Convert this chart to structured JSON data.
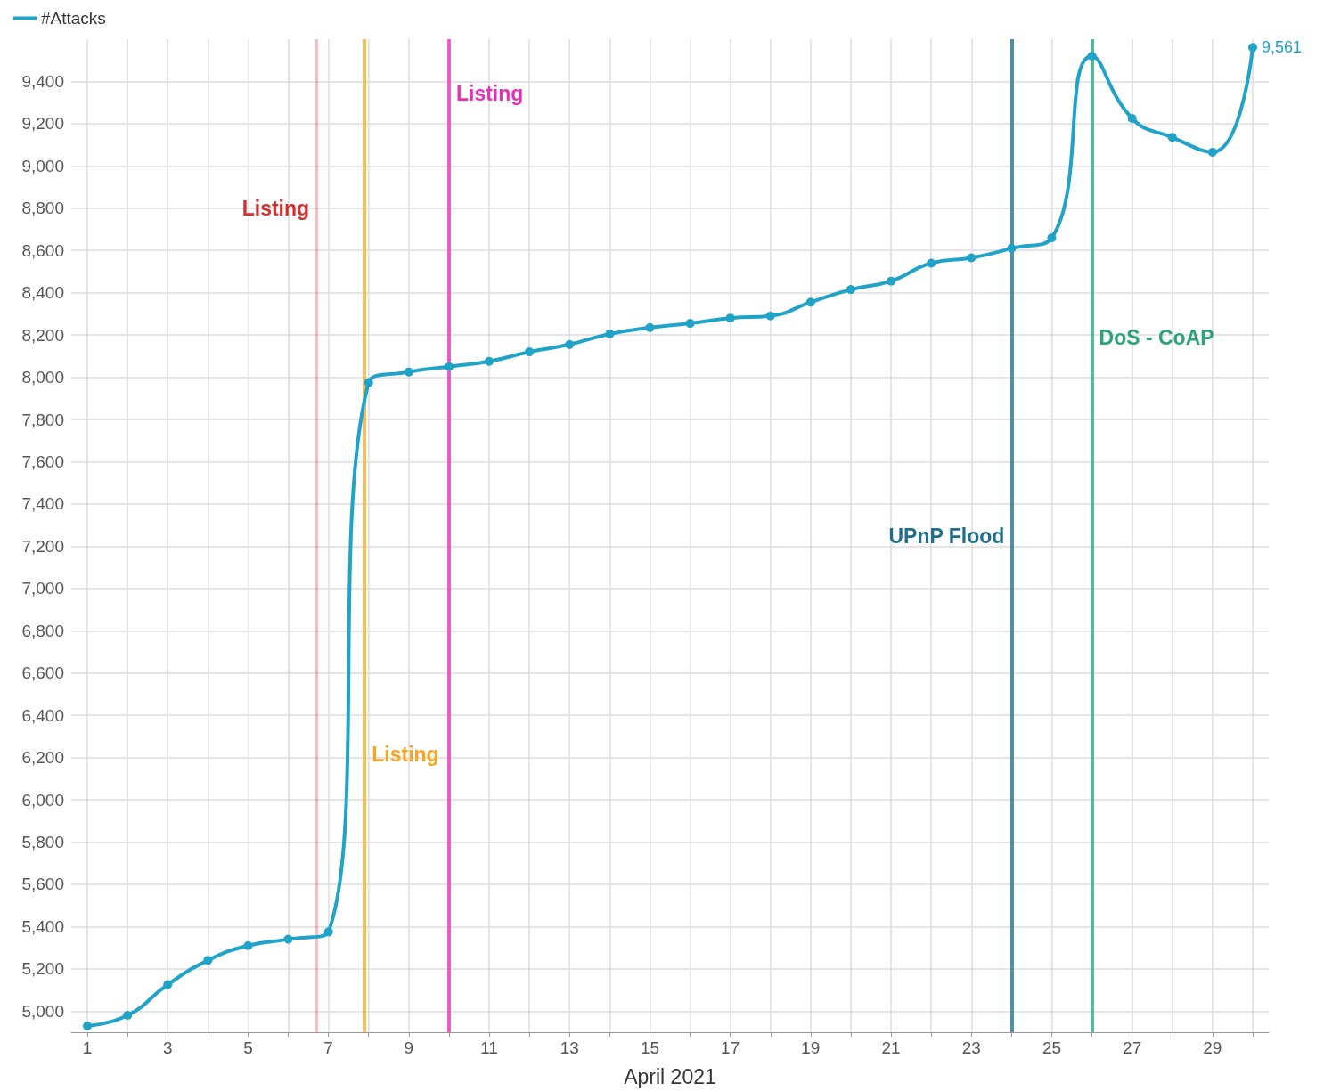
{
  "chart_data": {
    "type": "line",
    "xlabel": "April 2021",
    "x": [
      1,
      2,
      3,
      4,
      5,
      6,
      7,
      8,
      9,
      10,
      11,
      12,
      13,
      14,
      15,
      16,
      17,
      18,
      19,
      20,
      21,
      22,
      23,
      24,
      25,
      26,
      27,
      28,
      29,
      30
    ],
    "series": [
      {
        "name": "#Attacks",
        "color": "#1fa3c8",
        "values": [
          4930,
          4980,
          5125,
          5240,
          5310,
          5340,
          5375,
          7975,
          8025,
          8050,
          8075,
          8120,
          8155,
          8205,
          8235,
          8255,
          8280,
          8290,
          8355,
          8415,
          8455,
          8540,
          8565,
          8610,
          8660,
          9520,
          9225,
          9135,
          9065,
          9561
        ],
        "value_labels": [
          null,
          null,
          null,
          null,
          null,
          null,
          null,
          null,
          null,
          null,
          null,
          null,
          null,
          null,
          null,
          null,
          null,
          null,
          null,
          null,
          null,
          null,
          null,
          null,
          null,
          null,
          null,
          null,
          null,
          "9,561"
        ]
      }
    ],
    "xlim": [
      0.6,
      30.4
    ],
    "xticks": [
      1,
      {
        "value": 2,
        "label": null
      },
      3,
      {
        "value": 4,
        "label": null
      },
      5,
      {
        "value": 6,
        "label": null
      },
      7,
      {
        "value": 8,
        "label": null
      },
      9,
      {
        "value": 10,
        "label": null
      },
      11,
      {
        "value": 12,
        "label": null
      },
      13,
      {
        "value": 14,
        "label": null
      },
      15,
      {
        "value": 16,
        "label": null
      },
      17,
      {
        "value": 18,
        "label": null
      },
      19,
      {
        "value": 20,
        "label": null
      },
      21,
      {
        "value": 22,
        "label": null
      },
      23,
      {
        "value": 24,
        "label": null
      },
      25,
      {
        "value": 26,
        "label": null
      },
      27,
      {
        "value": 28,
        "label": null
      },
      29,
      {
        "value": 30,
        "label": null
      }
    ],
    "ylim": [
      4900,
      9600
    ],
    "yticks": [
      {
        "value": 5000,
        "label": "5,000"
      },
      {
        "value": 5200,
        "label": "5,200"
      },
      {
        "value": 5400,
        "label": "5,400"
      },
      {
        "value": 5600,
        "label": "5,600"
      },
      {
        "value": 5800,
        "label": "5,800"
      },
      {
        "value": 6000,
        "label": "6,000"
      },
      {
        "value": 6200,
        "label": "6,200"
      },
      {
        "value": 6400,
        "label": "6,400"
      },
      {
        "value": 6600,
        "label": "6,600"
      },
      {
        "value": 6800,
        "label": "6,800"
      },
      {
        "value": 7000,
        "label": "7,000"
      },
      {
        "value": 7200,
        "label": "7,200"
      },
      {
        "value": 7400,
        "label": "7,400"
      },
      {
        "value": 7600,
        "label": "7,600"
      },
      {
        "value": 7800,
        "label": "7,800"
      },
      {
        "value": 8000,
        "label": "8,000"
      },
      {
        "value": 8200,
        "label": "8,200"
      },
      {
        "value": 8400,
        "label": "8,400"
      },
      {
        "value": 8600,
        "label": "8,600"
      },
      {
        "value": 8800,
        "label": "8,800"
      },
      {
        "value": 9000,
        "label": "9,000"
      },
      {
        "value": 9200,
        "label": "9,200"
      },
      {
        "value": 9400,
        "label": "9,400"
      }
    ],
    "ref_lines": [
      {
        "axis": "x",
        "value": 6.7,
        "label": "Listing",
        "color": "#d32f2f"
      },
      {
        "axis": "x",
        "value": 7.9,
        "label": "Listing",
        "color": "#f5a623"
      },
      {
        "axis": "x",
        "value": 10,
        "label": "Listing",
        "color": "#e62fb5"
      },
      {
        "axis": "x",
        "value": 24,
        "label": "UPnP Flood",
        "color": "#1f6f8b"
      },
      {
        "axis": "x",
        "value": 26,
        "label": "DoS - CoAP",
        "color": "#2aa37a"
      }
    ],
    "grid": true,
    "legend": "top left",
    "marker": "circle",
    "line_style": "solid"
  }
}
